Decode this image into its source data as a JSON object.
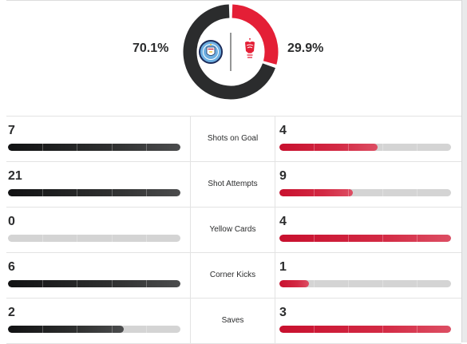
{
  "possession": {
    "home_pct": 70.1,
    "away_pct": 29.9,
    "home_label": "70.1%",
    "away_label": "29.9%",
    "home_color": "#2b2c2d",
    "away_color": "#e41f36",
    "home_badge": "manchester-city-crest-icon",
    "away_badge": "nottingham-forest-crest-icon"
  },
  "stats": [
    {
      "label": "Shots on Goal",
      "home": 7,
      "away": 4,
      "home_frac": 1.0,
      "away_frac": 0.57
    },
    {
      "label": "Shot Attempts",
      "home": 21,
      "away": 9,
      "home_frac": 1.0,
      "away_frac": 0.43
    },
    {
      "label": "Yellow Cards",
      "home": 0,
      "away": 4,
      "home_frac": 0.0,
      "away_frac": 1.0
    },
    {
      "label": "Corner Kicks",
      "home": 6,
      "away": 1,
      "home_frac": 1.0,
      "away_frac": 0.17
    },
    {
      "label": "Saves",
      "home": 2,
      "away": 3,
      "home_frac": 0.67,
      "away_frac": 1.0
    }
  ]
}
